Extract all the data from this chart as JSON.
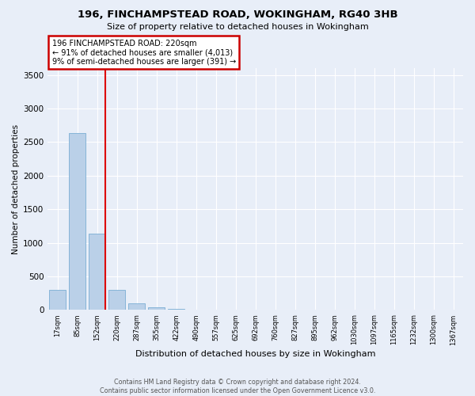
{
  "title_line1": "196, FINCHAMPSTEAD ROAD, WOKINGHAM, RG40 3HB",
  "title_line2": "Size of property relative to detached houses in Wokingham",
  "xlabel": "Distribution of detached houses by size in Wokingham",
  "ylabel": "Number of detached properties",
  "bar_color": "#bad0e8",
  "bar_edge_color": "#7aadd4",
  "vline_color": "#dd0000",
  "vline_index": 2,
  "annotation_text": "196 FINCHAMPSTEAD ROAD: 220sqm\n← 91% of detached houses are smaller (4,013)\n9% of semi-detached houses are larger (391) →",
  "annotation_box_facecolor": "#ffffff",
  "annotation_box_edgecolor": "#cc0000",
  "background_color": "#e8eef8",
  "grid_color": "#ffffff",
  "categories": [
    "17sqm",
    "85sqm",
    "152sqm",
    "220sqm",
    "287sqm",
    "355sqm",
    "422sqm",
    "490sqm",
    "557sqm",
    "625sqm",
    "692sqm",
    "760sqm",
    "827sqm",
    "895sqm",
    "962sqm",
    "1030sqm",
    "1097sqm",
    "1165sqm",
    "1232sqm",
    "1300sqm",
    "1367sqm"
  ],
  "values": [
    295,
    2630,
    1140,
    305,
    95,
    40,
    18,
    5,
    0,
    0,
    0,
    0,
    0,
    0,
    0,
    0,
    0,
    0,
    0,
    0,
    0
  ],
  "ylim": [
    0,
    3600
  ],
  "yticks": [
    0,
    500,
    1000,
    1500,
    2000,
    2500,
    3000,
    3500
  ],
  "footer_line1": "Contains HM Land Registry data © Crown copyright and database right 2024.",
  "footer_line2": "Contains public sector information licensed under the Open Government Licence v3.0."
}
